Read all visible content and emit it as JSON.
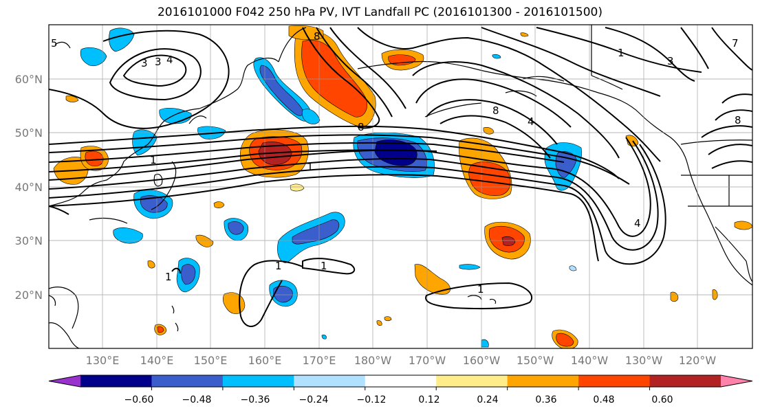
{
  "title": "2016101000 F042 250 hPa PV, IVT Landfall PC (2016101300 - 2016101500)",
  "lat_labels": [
    "60°N",
    "50°N",
    "40°N",
    "30°N",
    "20°N"
  ],
  "lon_labels": [
    "130°E",
    "140°E",
    "150°E",
    "160°E",
    "170°E",
    "180°W",
    "170°W",
    "160°W",
    "150°W",
    "140°W",
    "130°W",
    "120°W"
  ],
  "colorbar": {
    "colors": [
      "#9932CC",
      "#00008B",
      "#3A5FCD",
      "#00BFFF",
      "#B0E2FF",
      "#FFFFFF",
      "#FFEC8B",
      "#FFA500",
      "#FF4500",
      "#B22222",
      "#FF82AB"
    ],
    "tick_labels": [
      "−0.60",
      "−0.48",
      "−0.36",
      "−0.24",
      "−0.12",
      "0.12",
      "0.24",
      "0.36",
      "0.48",
      "0.60"
    ]
  },
  "contour_labels": [
    "1",
    "1",
    "1",
    "1",
    "1",
    "1",
    "1",
    "3",
    "3",
    "3",
    "4",
    "4",
    "4",
    "8",
    "8",
    "8",
    "8",
    "5",
    "7"
  ],
  "grid": "on"
}
